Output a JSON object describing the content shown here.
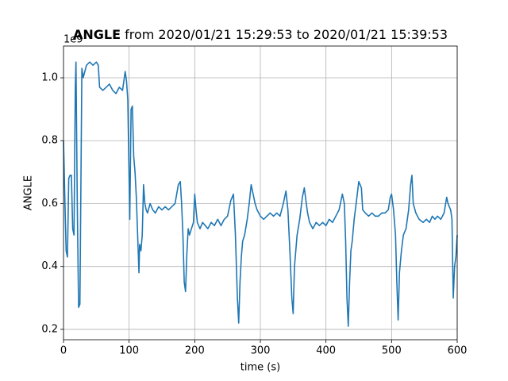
{
  "chart_data": {
    "type": "line",
    "title": {
      "bold": "ANGLE",
      "rest": "from 2020/01/21 15:29:53 to 2020/01/21 15:39:53"
    },
    "xlabel": "time (s)",
    "ylabel": "ANGLE",
    "y_offset_label": "1e9",
    "xlim": [
      0,
      600
    ],
    "xticks": [
      0,
      100,
      200,
      300,
      400,
      500,
      600
    ],
    "ylim": [
      0.167,
      1.101
    ],
    "yticks": [
      0.2,
      0.4,
      0.6,
      0.8,
      {
        "value": 1,
        "label": "1.0"
      }
    ],
    "grid": true,
    "x": [
      0,
      2,
      4,
      6,
      8,
      10,
      12,
      14,
      16,
      18,
      19,
      21,
      23,
      25,
      28,
      30,
      35,
      40,
      45,
      50,
      53,
      55,
      60,
      65,
      70,
      75,
      80,
      85,
      90,
      94,
      96,
      98,
      101,
      103,
      105,
      107,
      109,
      111,
      113,
      115,
      116,
      118,
      120,
      122,
      124,
      126,
      128,
      132,
      136,
      140,
      145,
      150,
      155,
      160,
      165,
      170,
      175,
      178,
      180,
      182,
      184,
      186,
      188,
      190,
      192,
      195,
      198,
      200,
      202,
      204,
      208,
      212,
      216,
      220,
      225,
      230,
      235,
      240,
      245,
      250,
      255,
      259,
      262,
      265,
      267,
      269,
      271,
      273,
      276,
      280,
      283,
      286,
      288,
      292,
      295,
      300,
      305,
      310,
      315,
      320,
      325,
      330,
      335,
      339,
      342,
      345,
      348,
      350,
      352,
      354,
      356,
      360,
      364,
      367,
      370,
      372,
      375,
      380,
      385,
      390,
      395,
      400,
      405,
      410,
      415,
      420,
      425,
      428,
      430,
      432,
      434,
      436,
      438,
      440,
      443,
      446,
      450,
      454,
      456,
      460,
      465,
      470,
      475,
      480,
      485,
      490,
      495,
      498,
      500,
      503,
      506,
      508,
      510,
      512,
      515,
      518,
      522,
      526,
      529,
      531,
      533,
      537,
      542,
      548,
      553,
      558,
      562,
      566,
      570,
      575,
      580,
      584,
      586,
      590,
      592,
      594,
      596,
      598,
      600
    ],
    "series": [
      {
        "name": "ANGLE",
        "color": "#1f77b4",
        "values": [
          0.8,
          0.62,
          0.45,
          0.43,
          0.68,
          0.69,
          0.69,
          0.52,
          0.5,
          0.97,
          1.05,
          0.6,
          0.27,
          0.28,
          1.03,
          1.0,
          1.04,
          1.05,
          1.04,
          1.05,
          1.04,
          0.97,
          0.96,
          0.97,
          0.98,
          0.96,
          0.95,
          0.97,
          0.96,
          1.02,
          0.99,
          0.93,
          0.55,
          0.9,
          0.91,
          0.75,
          0.7,
          0.62,
          0.5,
          0.38,
          0.47,
          0.45,
          0.5,
          0.66,
          0.6,
          0.58,
          0.57,
          0.6,
          0.58,
          0.57,
          0.59,
          0.58,
          0.59,
          0.58,
          0.59,
          0.6,
          0.66,
          0.67,
          0.6,
          0.5,
          0.35,
          0.32,
          0.44,
          0.52,
          0.5,
          0.52,
          0.54,
          0.63,
          0.58,
          0.54,
          0.52,
          0.54,
          0.53,
          0.52,
          0.54,
          0.53,
          0.55,
          0.53,
          0.55,
          0.56,
          0.61,
          0.63,
          0.5,
          0.3,
          0.22,
          0.35,
          0.43,
          0.48,
          0.5,
          0.55,
          0.6,
          0.66,
          0.64,
          0.6,
          0.58,
          0.56,
          0.55,
          0.56,
          0.57,
          0.56,
          0.57,
          0.56,
          0.6,
          0.64,
          0.58,
          0.45,
          0.3,
          0.25,
          0.4,
          0.45,
          0.5,
          0.55,
          0.62,
          0.65,
          0.6,
          0.57,
          0.54,
          0.52,
          0.54,
          0.53,
          0.54,
          0.53,
          0.55,
          0.54,
          0.56,
          0.58,
          0.63,
          0.6,
          0.48,
          0.3,
          0.21,
          0.35,
          0.45,
          0.48,
          0.55,
          0.6,
          0.67,
          0.65,
          0.58,
          0.57,
          0.56,
          0.57,
          0.56,
          0.56,
          0.57,
          0.57,
          0.58,
          0.62,
          0.63,
          0.58,
          0.5,
          0.35,
          0.23,
          0.38,
          0.45,
          0.5,
          0.52,
          0.58,
          0.66,
          0.69,
          0.6,
          0.57,
          0.55,
          0.54,
          0.55,
          0.54,
          0.56,
          0.55,
          0.56,
          0.55,
          0.57,
          0.62,
          0.6,
          0.58,
          0.55,
          0.3,
          0.4,
          0.43,
          0.5
        ]
      }
    ]
  }
}
